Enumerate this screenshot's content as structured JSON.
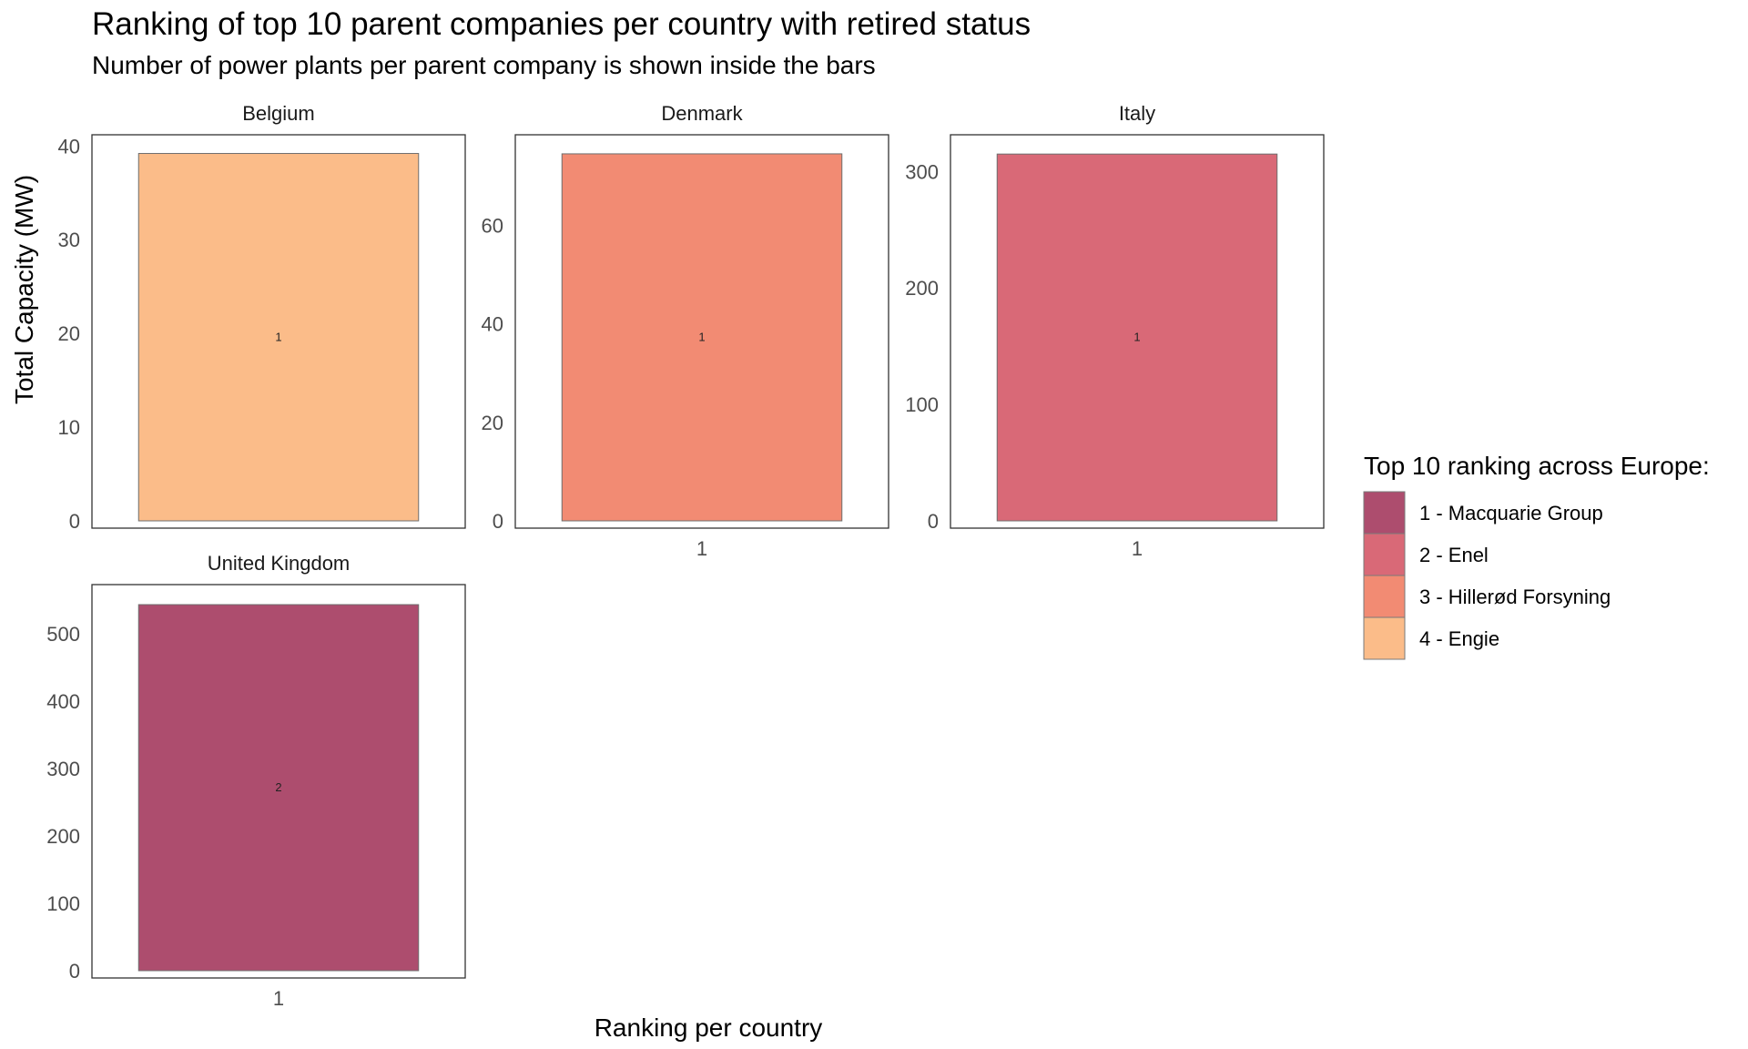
{
  "chart_data": {
    "type": "bar",
    "title": "Ranking of top 10 parent companies per country with retired status",
    "subtitle": "Number of power plants per parent company is shown inside the bars",
    "xlabel": "Ranking per country",
    "ylabel": "Total Capacity (MW)",
    "grid": false,
    "legend": {
      "title": "Top 10 ranking across Europe:",
      "position": "right",
      "entries": [
        {
          "label": "1 - Macquarie Group",
          "color": "#ad4d6e"
        },
        {
          "label": "2 - Enel",
          "color": "#d96977"
        },
        {
          "label": "3 - Hillerød Forsyning",
          "color": "#f28b73"
        },
        {
          "label": "4 - Engie",
          "color": "#fbbc89"
        }
      ]
    },
    "panels": [
      {
        "name": "Belgium",
        "ylim": [
          0,
          41
        ],
        "yticks": [
          0,
          10,
          20,
          30,
          40
        ],
        "show_xtick": false,
        "categories": [
          "1"
        ],
        "values": [
          39.2
        ],
        "counts": [
          "1"
        ],
        "legend_index": 3
      },
      {
        "name": "Denmark",
        "ylim": [
          0,
          78
        ],
        "yticks": [
          0,
          20,
          40,
          60
        ],
        "show_xtick": true,
        "categories": [
          "1"
        ],
        "values": [
          74.5
        ],
        "counts": [
          "1"
        ],
        "legend_index": 2
      },
      {
        "name": "Italy",
        "ylim": [
          0,
          330
        ],
        "yticks": [
          0,
          100,
          200,
          300
        ],
        "show_xtick": true,
        "categories": [
          "1"
        ],
        "values": [
          315
        ],
        "counts": [
          "1"
        ],
        "legend_index": 1
      },
      {
        "name": "United Kingdom",
        "ylim": [
          0,
          570
        ],
        "yticks": [
          0,
          100,
          200,
          300,
          400,
          500
        ],
        "show_xtick": true,
        "categories": [
          "1"
        ],
        "values": [
          543
        ],
        "counts": [
          "2"
        ],
        "legend_index": 0
      }
    ]
  }
}
